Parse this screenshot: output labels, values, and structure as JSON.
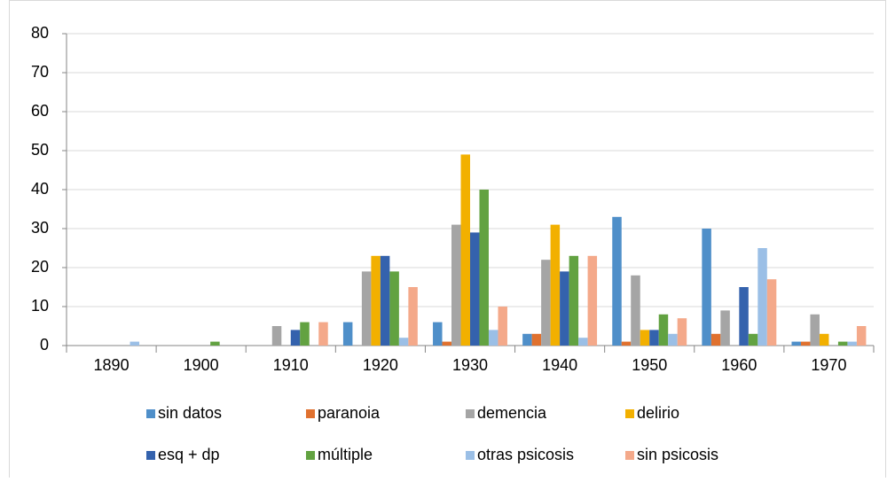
{
  "chart_data": {
    "type": "bar",
    "categories": [
      "1890",
      "1900",
      "1910",
      "1920",
      "1930",
      "1940",
      "1950",
      "1960",
      "1970"
    ],
    "series": [
      {
        "name": "sin datos",
        "color": "#4f8fc9",
        "values": [
          0,
          0,
          0,
          6,
          6,
          3,
          33,
          30,
          1
        ]
      },
      {
        "name": "paranoia",
        "color": "#e0712f",
        "values": [
          0,
          0,
          0,
          0,
          1,
          3,
          1,
          3,
          1
        ]
      },
      {
        "name": "demencia",
        "color": "#a5a5a5",
        "values": [
          0,
          0,
          5,
          19,
          31,
          22,
          18,
          9,
          8
        ]
      },
      {
        "name": "delirio",
        "color": "#f2b000",
        "values": [
          0,
          0,
          0,
          23,
          49,
          31,
          4,
          0,
          3
        ]
      },
      {
        "name": "esq + dp",
        "color": "#3462ad",
        "values": [
          0,
          0,
          4,
          23,
          29,
          19,
          4,
          15,
          0
        ]
      },
      {
        "name": "múltiple",
        "color": "#62a241",
        "values": [
          0,
          1,
          6,
          19,
          40,
          23,
          8,
          3,
          1
        ]
      },
      {
        "name": "otras psicosis",
        "color": "#9bbfe6",
        "values": [
          1,
          0,
          0,
          2,
          4,
          2,
          3,
          25,
          1
        ]
      },
      {
        "name": "sin psicosis",
        "color": "#f4a98a",
        "values": [
          0,
          0,
          6,
          15,
          10,
          23,
          7,
          17,
          5
        ]
      }
    ],
    "ylim": [
      0,
      80
    ],
    "yticks": [
      0,
      10,
      20,
      30,
      40,
      50,
      60,
      70,
      80
    ],
    "grid": true,
    "legend": "bottom"
  }
}
